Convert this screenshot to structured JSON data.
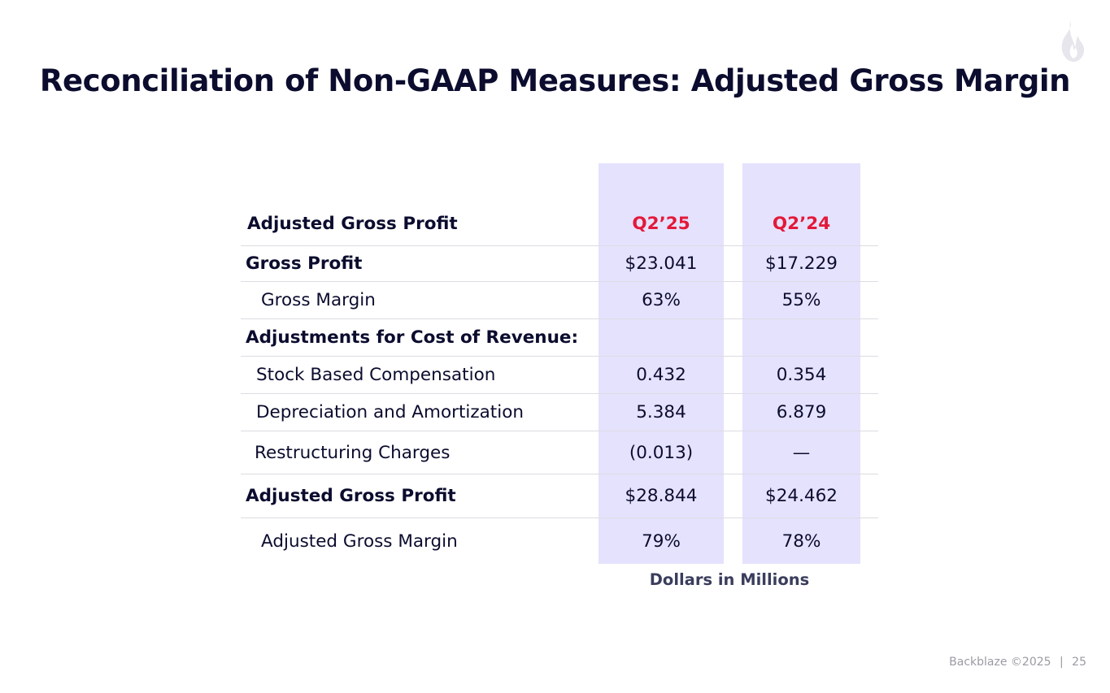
{
  "slide": {
    "title": "Reconciliation of Non-GAAP Measures: Adjusted Gross Margin",
    "footer_company": "Backblaze ©2025",
    "footer_separator": "|",
    "page_number": "25",
    "units_note": "Dollars in Millions",
    "logo_icon": "flame-logo-icon"
  },
  "table": {
    "header": {
      "label": "Adjusted Gross Profit",
      "col1": "Q2’25",
      "col2": "Q2’24"
    },
    "rows": [
      {
        "label": "Gross Profit",
        "col1": "$23.041",
        "col2": "$17.229"
      },
      {
        "label": "Gross Margin",
        "col1": "63%",
        "col2": "55%"
      },
      {
        "label": "Adjustments for Cost of Revenue:",
        "col1": "",
        "col2": ""
      },
      {
        "label": "Stock Based Compensation",
        "col1": "0.432",
        "col2": "0.354"
      },
      {
        "label": "Depreciation and Amortization",
        "col1": "5.384",
        "col2": "6.879"
      },
      {
        "label": "Restructuring Charges",
        "col1": "(0.013)",
        "col2": "—"
      },
      {
        "label": "Adjusted Gross Profit",
        "col1": "$28.844",
        "col2": "$24.462"
      },
      {
        "label": "Adjusted Gross Margin",
        "col1": "79%",
        "col2": "78%"
      }
    ]
  },
  "colors": {
    "header_accent": "#e3193b",
    "column_fill": "#e5e2fd",
    "text": "#0b0c2e"
  }
}
